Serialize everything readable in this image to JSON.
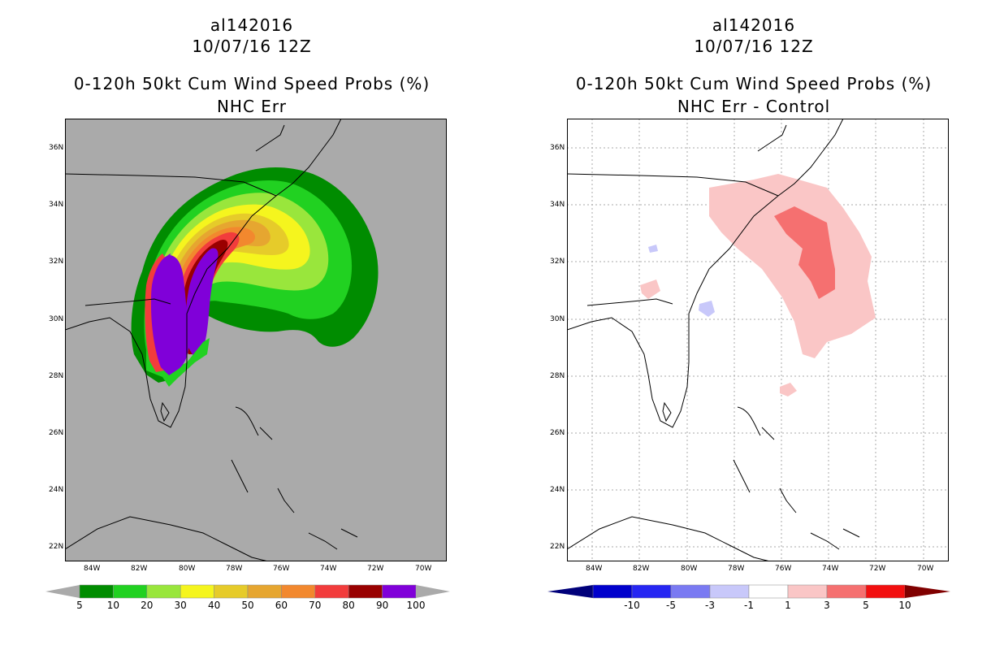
{
  "left": {
    "title1": "al142016",
    "title2": "10/07/16 12Z",
    "title3": "0-120h 50kt Cum Wind Speed Probs (%)",
    "title4": "NHC Err",
    "colorbar": {
      "colors": [
        "#008c00",
        "#21d121",
        "#99e63c",
        "#f5f51e",
        "#e6cb2a",
        "#e6a630",
        "#f2882e",
        "#f23c3c",
        "#990000",
        "#8000d9"
      ],
      "labels": [
        "5",
        "10",
        "20",
        "30",
        "40",
        "50",
        "60",
        "70",
        "80",
        "90",
        "100"
      ]
    }
  },
  "right": {
    "title1": "al142016",
    "title2": "10/07/16 12Z",
    "title3": "0-120h 50kt Cum Wind Speed Probs (%)",
    "title4": "NHC Err - Control",
    "colorbar": {
      "colors": [
        "#0000cc",
        "#2626f2",
        "#7a7af2",
        "#c8c8fa",
        "#ffffff",
        "#fac6c6",
        "#f57070",
        "#f20f0f"
      ],
      "end_colors": [
        "#00007a",
        "#800000"
      ],
      "labels": [
        "-10",
        "-5",
        "-3",
        "-1",
        "1",
        "3",
        "5",
        "10"
      ]
    }
  },
  "axes": {
    "lat_labels": [
      "36N",
      "34N",
      "32N",
      "30N",
      "28N",
      "26N",
      "24N",
      "22N"
    ],
    "lon_labels": [
      "84W",
      "82W",
      "80W",
      "78W",
      "76W",
      "74W",
      "72W",
      "70W"
    ]
  },
  "colors": {
    "left_bg": "#aaaaaa",
    "right_bg": "#ffffff",
    "coast": "#000000"
  }
}
